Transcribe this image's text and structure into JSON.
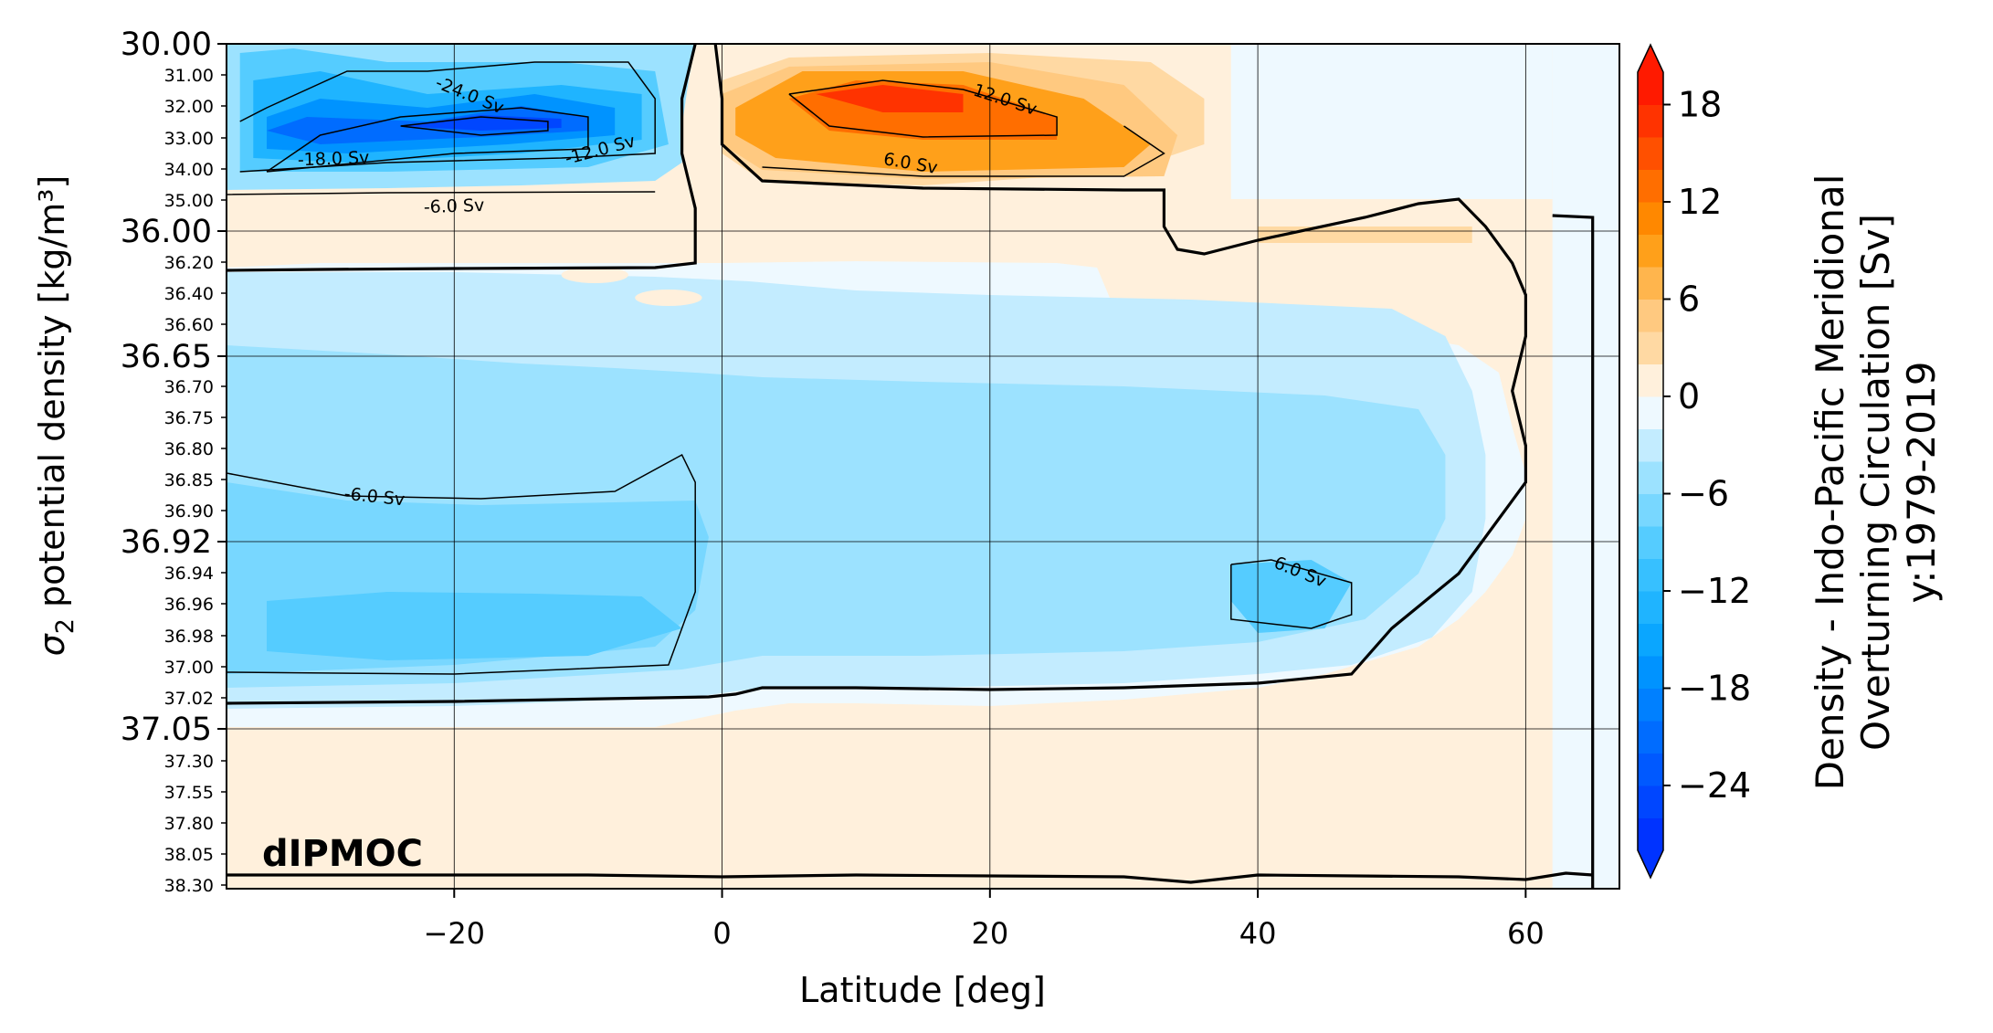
{
  "chart_data": {
    "type": "heatmap",
    "panel_label": "dIPMOC",
    "xlabel": "Latitude [deg]",
    "ylabel": "σ2 potential density [kg/m³]",
    "ylabel_main": "σ",
    "ylabel_sub": "2",
    "ylabel_rest": " potential density [kg/m³]",
    "colorbar_label_lines": [
      "Density - Indo-Pacific Meridional",
      "Overturning Circulation [Sv]",
      "y:1979-2019"
    ],
    "xlim": [
      -37,
      67
    ],
    "x_ticks": [
      -20,
      0,
      20,
      40,
      60
    ],
    "x_tick_labels": [
      "−20",
      "0",
      "20",
      "40",
      "60"
    ],
    "y_major_ticks": [
      "30.00",
      "36.00",
      "36.65",
      "36.92",
      "37.05"
    ],
    "y_minor_ticks": [
      "31.00",
      "32.00",
      "33.00",
      "34.00",
      "35.00",
      "36.20",
      "36.40",
      "36.60",
      "36.70",
      "36.75",
      "36.80",
      "36.85",
      "36.90",
      "36.94",
      "36.96",
      "36.98",
      "37.00",
      "37.02",
      "37.30",
      "37.55",
      "37.80",
      "38.05",
      "38.30"
    ],
    "y_levels": [
      "30.00",
      "31.00",
      "32.00",
      "33.00",
      "34.00",
      "35.00",
      "36.00",
      "36.20",
      "36.40",
      "36.60",
      "36.65",
      "36.70",
      "36.75",
      "36.80",
      "36.85",
      "36.90",
      "36.92",
      "36.94",
      "36.96",
      "36.98",
      "37.00",
      "37.02",
      "37.05",
      "37.30",
      "37.55",
      "37.80",
      "38.05",
      "38.30"
    ],
    "colorbar_range": [
      -28,
      20
    ],
    "colorbar_ticks": [
      18,
      12,
      6,
      0,
      -6,
      -12,
      -18,
      -24
    ],
    "colorbar_tick_labels": [
      "18",
      "12",
      "6",
      "0",
      "−6",
      "−12",
      "−18",
      "−24"
    ],
    "colorbar_extend": "both",
    "colorbar_levels": [
      -28,
      -26,
      -24,
      -22,
      -20,
      -18,
      -16,
      -14,
      -12,
      -10,
      -8,
      -6,
      -4,
      -2,
      0,
      2,
      4,
      6,
      8,
      10,
      12,
      14,
      16,
      18,
      20
    ],
    "colors": {
      "neg": [
        "#0033ff",
        "#0046ff",
        "#0059ff",
        "#006cff",
        "#0080ff",
        "#0093ff",
        "#0aa6ff",
        "#1fb4ff",
        "#37c0ff",
        "#55ccff",
        "#78d7ff",
        "#9ce2ff",
        "#c3ecff",
        "#eef9ff"
      ],
      "pos": [
        "#fff0dc",
        "#ffd9a3",
        "#ffc980",
        "#ffb54d",
        "#ffa01a",
        "#ff8800",
        "#ff6e00",
        "#ff5000",
        "#ff3300",
        "#ff1a00"
      ]
    },
    "contour_labels": [
      "-24.0 Sv",
      "-18.0 Sv",
      "-12.0 Sv",
      "-6.0 Sv",
      "12.0 Sv",
      "6.0 Sv",
      "-6.0 Sv",
      "6.0 Sv"
    ],
    "features": [
      {
        "name": "southern upper negative cell",
        "lat_range": [
          -36,
          -2
        ],
        "sigma_range": [
          "30.00",
          "35.00"
        ],
        "min_sv": -27
      },
      {
        "name": "northern upper positive cell",
        "lat_range": [
          0,
          34
        ],
        "sigma_range": [
          "30.00",
          "35.00"
        ],
        "max_sv": 17
      },
      {
        "name": "deep negative cell",
        "lat_range": [
          -36,
          60
        ],
        "sigma_range": [
          "36.00",
          "37.02"
        ],
        "min_sv": -10
      }
    ]
  }
}
